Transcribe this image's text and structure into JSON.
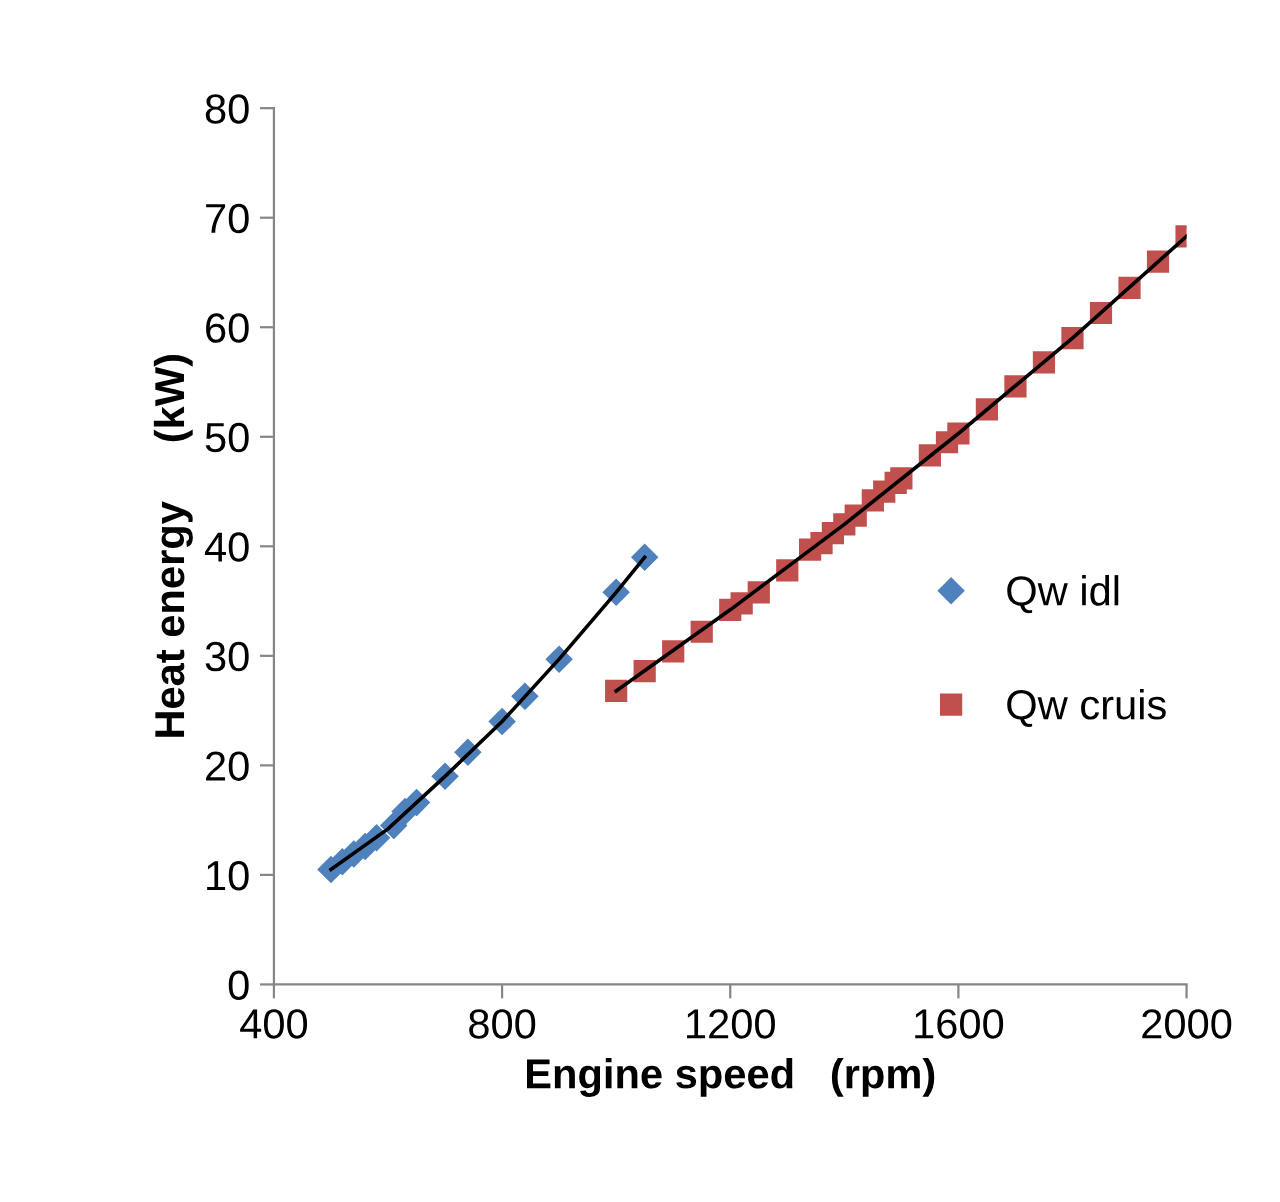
{
  "chart_data": {
    "type": "scatter",
    "xlabel": "Engine speed   (rpm)",
    "ylabel": "Heat energy     (kW)",
    "xlim": [
      400,
      2000
    ],
    "xticks": [
      400,
      800,
      1200,
      1600,
      2000
    ],
    "ylim": [
      0,
      80
    ],
    "yticks": [
      0,
      10,
      20,
      30,
      40,
      50,
      60,
      70,
      80
    ],
    "grid": false,
    "legend": "right",
    "series": [
      {
        "name": "Qw idl",
        "color": "#4f81bd",
        "marker": "diamond",
        "x": [
          500,
          520,
          540,
          560,
          580,
          610,
          630,
          650,
          700,
          740,
          800,
          840,
          900,
          1000,
          1050
        ],
        "values": [
          10.5,
          11.2,
          11.9,
          12.6,
          13.4,
          14.5,
          15.8,
          16.6,
          19,
          21.2,
          24,
          26.3,
          29.7,
          35.8,
          39
        ]
      },
      {
        "name": "Qw cruis",
        "color": "#c0504d",
        "marker": "square",
        "x": [
          1000,
          1050,
          1100,
          1150,
          1200,
          1220,
          1250,
          1300,
          1340,
          1360,
          1380,
          1400,
          1420,
          1450,
          1470,
          1490,
          1500,
          1550,
          1580,
          1600,
          1650,
          1700,
          1750,
          1800,
          1850,
          1900,
          1950,
          2000
        ],
        "values": [
          26.8,
          28.6,
          30.4,
          32.2,
          34.2,
          34.8,
          35.8,
          37.8,
          39.7,
          40.3,
          41.2,
          42,
          42.8,
          44.2,
          45,
          45.8,
          46.2,
          48.3,
          49.5,
          50.3,
          52.5,
          54.6,
          56.8,
          59,
          61.3,
          63.6,
          66,
          68.3
        ]
      },
      {
        "type": "line",
        "color": "#000000",
        "marker": "none",
        "x": [
          500,
          600,
          700,
          800,
          900,
          1000,
          1050
        ],
        "values": [
          10.5,
          14.2,
          19,
          24,
          29.7,
          35.8,
          39
        ]
      },
      {
        "type": "line",
        "color": "#000000",
        "marker": "none",
        "x": [
          1000,
          1200,
          1400,
          1600,
          1800,
          2000
        ],
        "values": [
          26.8,
          34.2,
          42,
          50.3,
          59,
          68.3
        ]
      }
    ]
  }
}
